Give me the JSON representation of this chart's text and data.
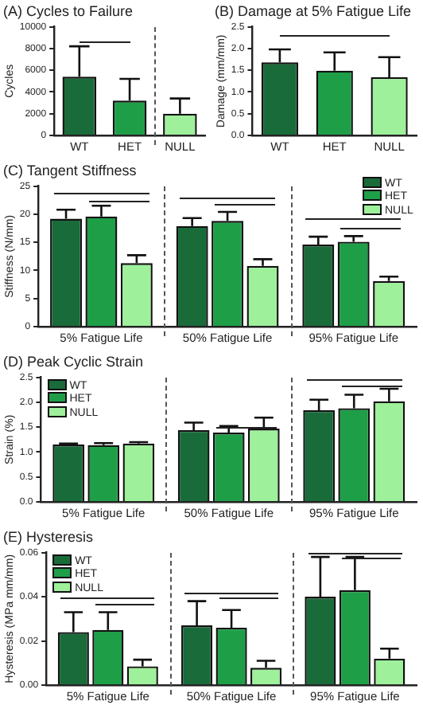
{
  "chart_data": [
    {
      "type": "bar",
      "title": "(A) Cycles to Failure",
      "ylabel": "Cycles",
      "categories": [
        "WT",
        "HET",
        "NULL"
      ],
      "values": [
        5400,
        3200,
        2000
      ],
      "colors": [
        "#1a6b3a",
        "#1f9e48",
        "#9ef09a"
      ],
      "errors": [
        [
          5400,
          8200
        ],
        [
          3200,
          5200
        ],
        [
          2000,
          3400
        ]
      ],
      "ylim": [
        0,
        10000
      ],
      "yticks": [
        0,
        2000,
        4000,
        6000,
        8000,
        10000
      ]
    },
    {
      "type": "bar",
      "title": "(B) Damage at 5% Fatigue Life",
      "ylabel": "Damage (mm/mm)",
      "categories": [
        "WT",
        "HET",
        "NULL"
      ],
      "values": [
        1.68,
        1.49,
        1.34
      ],
      "colors": [
        "#1a6b3a",
        "#1f9e48",
        "#9ef09a"
      ],
      "errors": [
        [
          1.68,
          1.98
        ],
        [
          1.49,
          1.91
        ],
        [
          1.34,
          1.8
        ]
      ],
      "ylim": [
        0,
        2.5
      ],
      "yticks": [
        {
          "value": 0,
          "label": "0.0"
        },
        {
          "value": 0.5,
          "label": "0.5"
        },
        {
          "value": 1,
          "label": "1.0"
        },
        {
          "value": 1.5,
          "label": "1.5"
        },
        {
          "value": 2,
          "label": "2.0"
        },
        {
          "value": 2.5,
          "label": "2.5"
        }
      ]
    },
    {
      "type": "bar",
      "title": "(C) Tangent Stiffness",
      "ylabel": "Stiffness (N/mm)",
      "categories": [
        "5% Fatigue Life",
        "50% Fatigue Life",
        "95% Fatigue Life"
      ],
      "legend": "top right",
      "ylim": [
        0,
        25
      ],
      "yticks": [
        0,
        5,
        10,
        15,
        20,
        25
      ],
      "series": [
        {
          "name": "WT",
          "color": "#1a6b3a",
          "values": [
            19.2,
            17.9,
            14.6
          ],
          "errors": [
            [
              19.2,
              20.8
            ],
            [
              17.9,
              19.3
            ],
            [
              14.6,
              16
            ]
          ]
        },
        {
          "name": "HET",
          "color": "#1f9e48",
          "values": [
            19.6,
            18.8,
            15.1
          ],
          "errors": [
            [
              19.6,
              21.5
            ],
            [
              18.8,
              20.4
            ],
            [
              15.1,
              16.1
            ]
          ]
        },
        {
          "name": "NULL",
          "color": "#9ef09a",
          "values": [
            11.3,
            10.8,
            8.1
          ],
          "errors": [
            [
              11.3,
              12.7
            ],
            [
              10.8,
              12
            ],
            [
              8.1,
              8.9
            ]
          ]
        }
      ]
    },
    {
      "type": "bar",
      "title": "(D) Peak Cyclic Strain",
      "ylabel": "Strain (%)",
      "categories": [
        "5% Fatigue Life",
        "50% Fatigue Life",
        "95% Fatigue Life"
      ],
      "legend": "top left",
      "ylim": [
        0,
        2.5
      ],
      "yticks": [
        {
          "value": 0,
          "label": "0.0"
        },
        {
          "value": 0.5,
          "label": "0.5"
        },
        {
          "value": 1,
          "label": "1.0"
        },
        {
          "value": 1.5,
          "label": "1.5"
        },
        {
          "value": 2,
          "label": "2.0"
        },
        {
          "value": 2.5,
          "label": "2.5"
        }
      ],
      "series": [
        {
          "name": "WT",
          "color": "#1a6b3a",
          "values": [
            1.15,
            1.44,
            1.84
          ],
          "errors": [
            [
              1.15,
              1.17
            ],
            [
              1.44,
              1.59
            ],
            [
              1.84,
              2.05
            ]
          ]
        },
        {
          "name": "HET",
          "color": "#1f9e48",
          "values": [
            1.14,
            1.39,
            1.88
          ],
          "errors": [
            [
              1.14,
              1.18
            ],
            [
              1.39,
              1.52
            ],
            [
              1.88,
              2.15
            ]
          ]
        },
        {
          "name": "NULL",
          "color": "#9ef09a",
          "values": [
            1.17,
            1.47,
            2.02
          ],
          "errors": [
            [
              1.17,
              1.2
            ],
            [
              1.47,
              1.69
            ],
            [
              2.02,
              2.27
            ]
          ]
        }
      ]
    },
    {
      "type": "bar",
      "title": "(E) Hysteresis",
      "ylabel": "Hysteresis (MPa mm/mm)",
      "categories": [
        "5% Fatigue Life",
        "50% Fatigue Life",
        "95% Fatigue Life"
      ],
      "legend": "top left",
      "ylim": [
        0,
        0.06
      ],
      "yticks": [
        {
          "value": 0,
          "label": "0.00"
        },
        {
          "value": 0.02,
          "label": "0.02"
        },
        {
          "value": 0.04,
          "label": "0.04"
        },
        {
          "value": 0.06,
          "label": "0.06"
        }
      ],
      "series": [
        {
          "name": "WT",
          "color": "#1a6b3a",
          "values": [
            0.024,
            0.027,
            0.04
          ],
          "errors": [
            [
              0.024,
              0.033
            ],
            [
              0.027,
              0.038
            ],
            [
              0.04,
              0.058
            ]
          ]
        },
        {
          "name": "HET",
          "color": "#1f9e48",
          "values": [
            0.025,
            0.026,
            0.043
          ],
          "errors": [
            [
              0.025,
              0.033
            ],
            [
              0.026,
              0.034
            ],
            [
              0.043,
              0.058
            ]
          ]
        },
        {
          "name": "NULL",
          "color": "#9ef09a",
          "values": [
            0.0085,
            0.0078,
            0.012
          ],
          "errors": [
            [
              0.0085,
              0.0115
            ],
            [
              0.0078,
              0.011
            ],
            [
              0.012,
              0.0165
            ]
          ]
        }
      ]
    }
  ]
}
